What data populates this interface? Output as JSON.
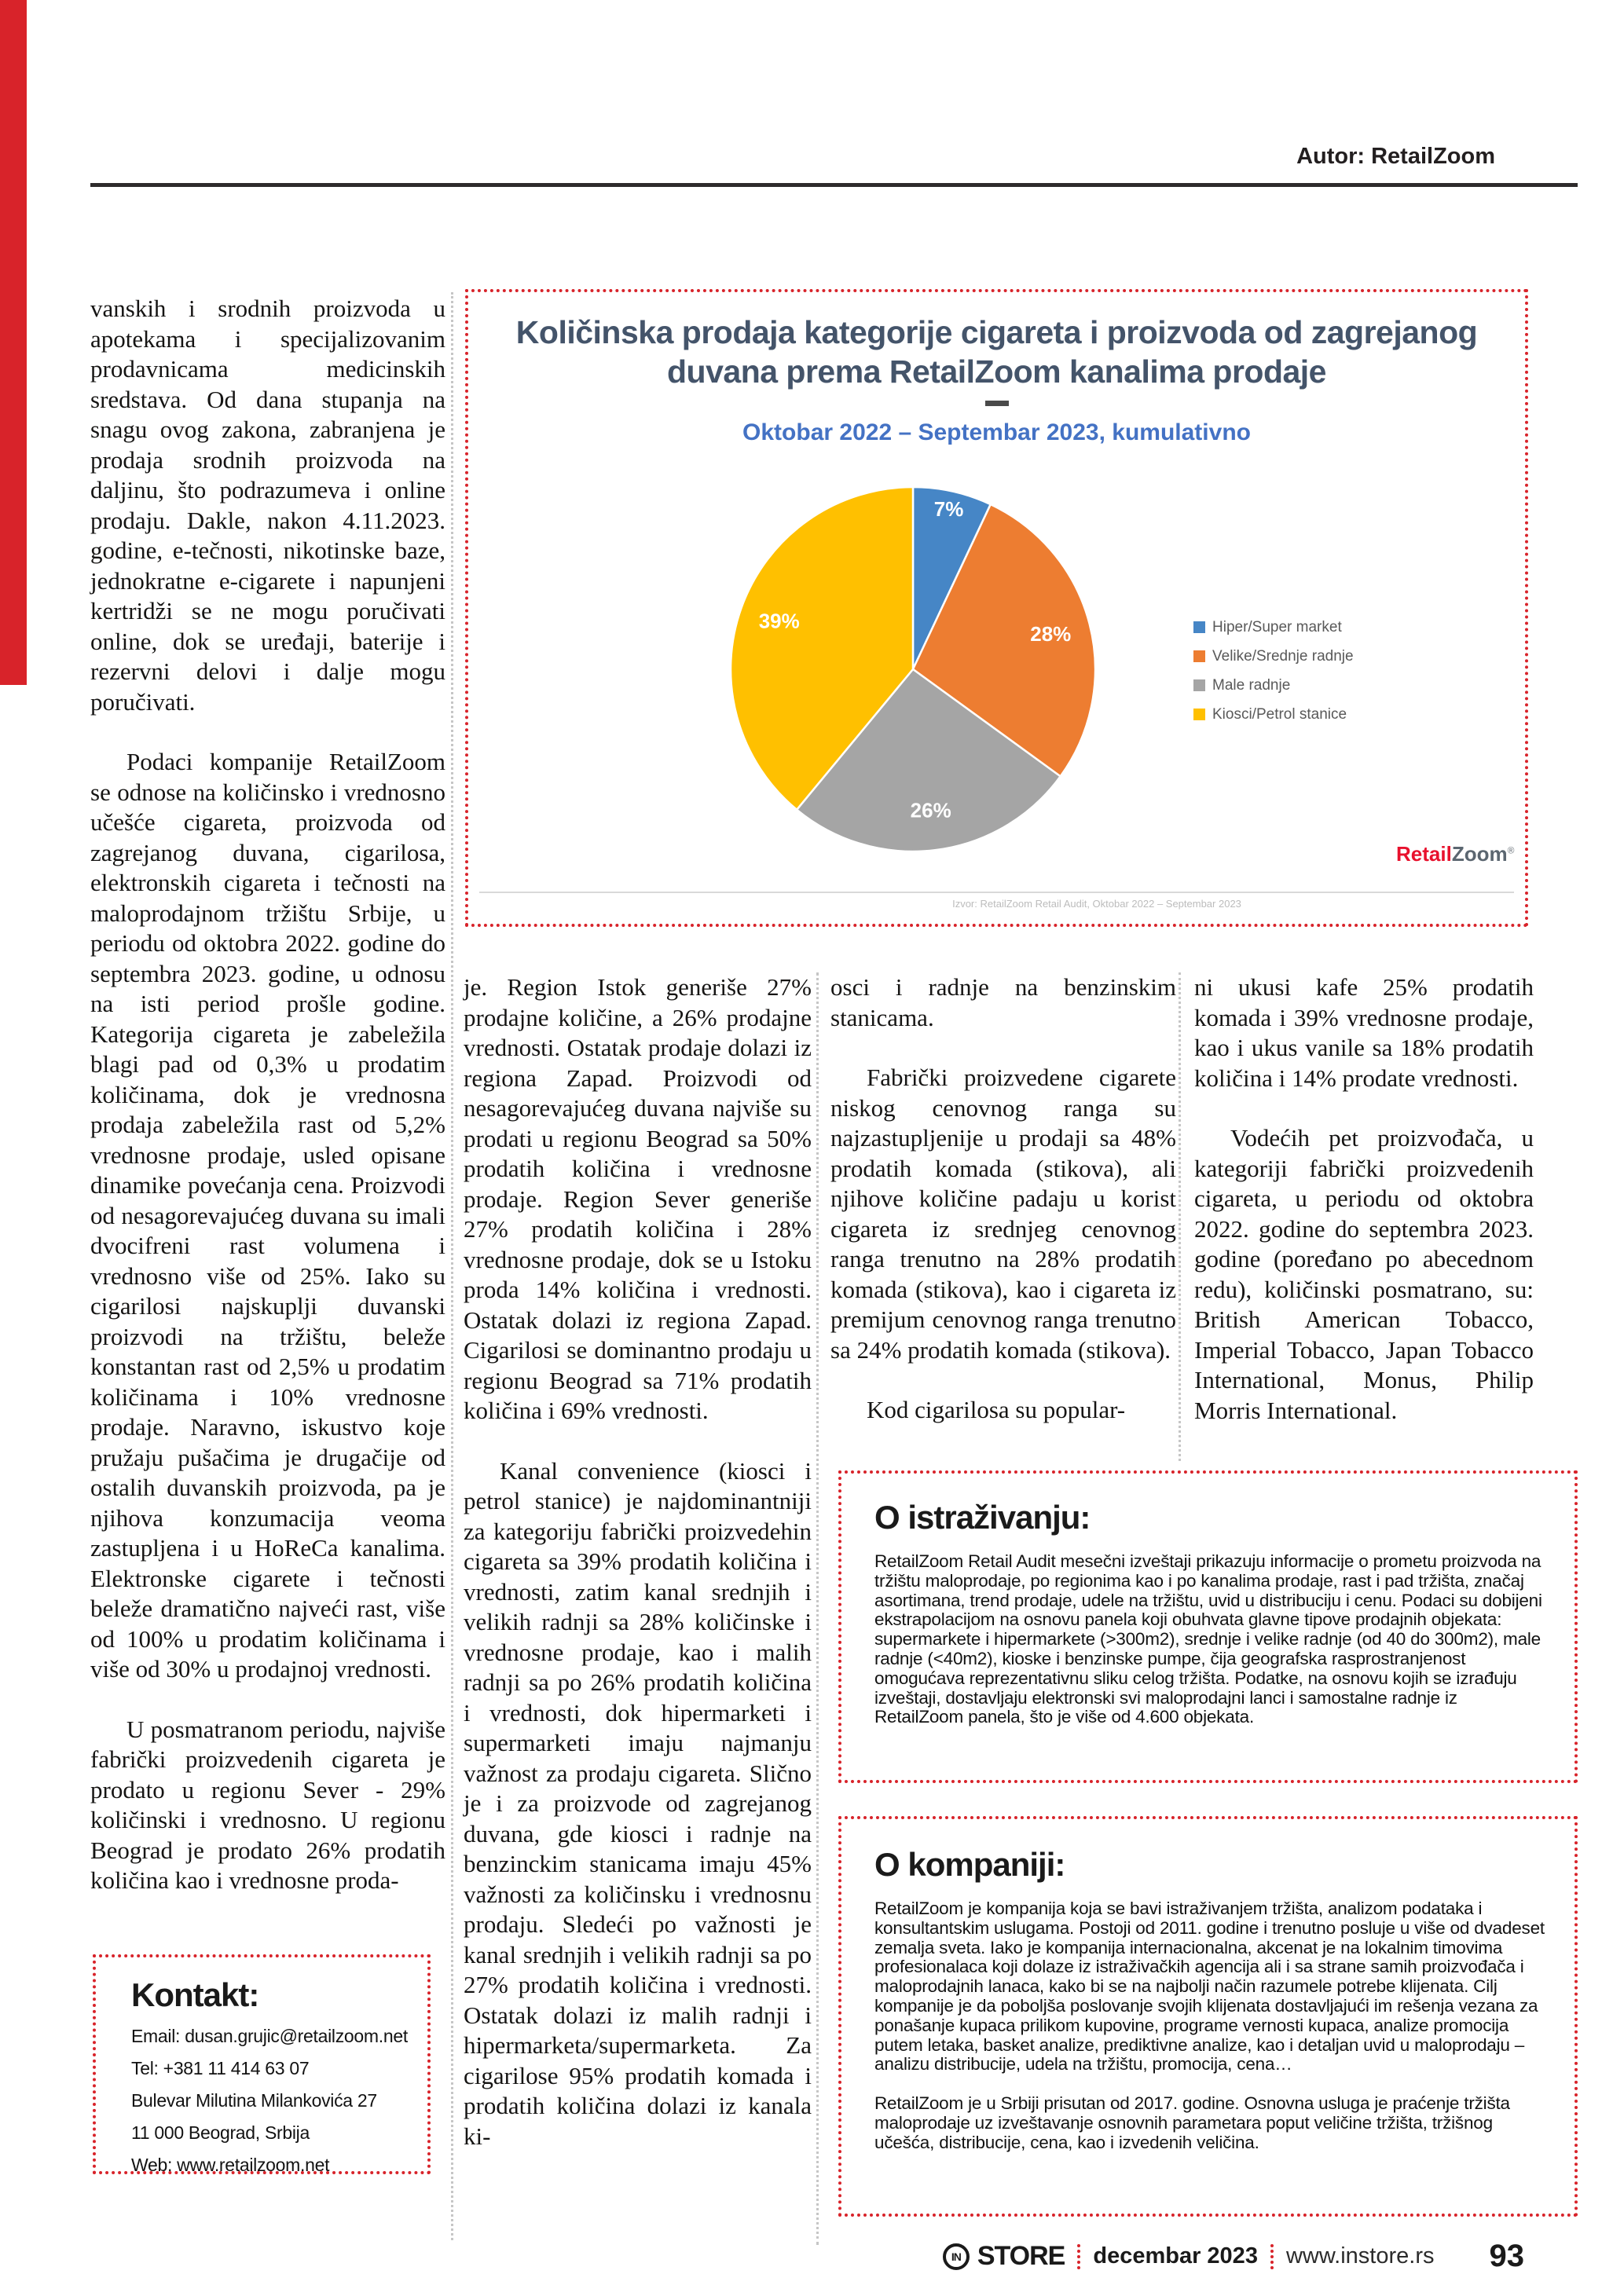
{
  "theme": {
    "accent_red": "#d8232a"
  },
  "header": {
    "author": "Autor: RetailZoom"
  },
  "chart_data": {
    "type": "pie",
    "title": "Količinska prodaja kategorije cigareta i proizvoda od zagrejanog duvana prema RetailZoom kanalima prodaje",
    "subtitle": "Oktobar 2022 – Septembar 2023, kumulativno",
    "labels": [
      "Hiper/Super market",
      "Velike/Srednje radnje",
      "Male radnje",
      "Kiosci/Petrol stanice"
    ],
    "values": [
      7,
      28,
      26,
      39
    ],
    "unit": "%",
    "colors": [
      "#4686c6",
      "#ed7d31",
      "#a5a5a5",
      "#ffc000"
    ],
    "legend_position": "right",
    "start_angle_deg": 0,
    "direction": "clockwise"
  },
  "chart": {
    "source_note": "Izvor: RetailZoom Retail Audit, Oktobar 2022 – Septembar 2023",
    "logo": {
      "retail": "Retail",
      "zoom": "Zoom",
      "mark": "®"
    }
  },
  "columns": {
    "col1": {
      "p1": "vanskih i srodnih proizvoda u apotekama i specijalizovanim prodavnicama medicinskih sredstava. Od dana stupanja na snagu ovog zakona, zabranjena je prodaja srodnih proizvoda na daljinu, što podrazumeva i online prodaju. Dakle, nakon 4.11.2023. godine, e-tečnosti, nikotinske baze, jednokratne e-cigarete i napunjeni kertridži se ne mogu poručivati online, dok se uređaji, baterije i rezervni delovi i dalje mogu poručivati.",
      "p2": "Podaci kompanije RetailZoom se odnose na količinsko i vrednosno učešće cigareta, proizvoda od zagrejanog duvana, cigarilosa, elektronskih cigareta i tečnosti na maloprodajnom tržištu Srbije, u periodu od oktobra 2022. godine do septembra 2023. godine, u odnosu na isti period prošle godine. Kategorija cigareta je zabeležila blagi pad od 0,3% u prodatim količinama, dok je vrednosna prodaja zabeležila rast od 5,2% vrednosne prodaje, usled opisane dinamike povećanja cena. Proizvodi od nesagorevajućeg duvana su imali dvocifreni rast volumena i vrednosno više od 25%. Iako su cigarilosi najskuplji duvanski proizvodi na tržištu, beleže konstantan rast od 2,5% u prodatim količinama i 10% vrednosne prodaje. Naravno, iskustvo koje pružaju pušačima je drugačije od ostalih duvanskih proizvoda, pa je njihova konzumacija veoma zastupljena i u HoReCa kanalima. Elektronske cigarete i tečnosti beleže dramatično najveći rast, više od 100% u prodatim količinama i više od 30% u prodajnoj vrednosti.",
      "p3": "U posmatranom periodu, najviše fabrički proizvedenih cigareta je prodato u regionu Sever - 29% količinski i vrednosno. U regionu Beograd je prodato 26% prodatih količina kao i vrednosne proda-"
    },
    "col2": {
      "p1": "je. Region Istok generiše 27% prodajne količine, a 26% prodajne vrednosti. Ostatak prodaje dolazi iz regiona Zapad. Proizvodi od nesagorevajućeg duvana najviše su prodati u regionu Beograd sa 50% prodatih količina i vrednosne prodaje. Region Sever generiše 27% prodatih količina i 28% vrednosne prodaje, dok se u Istoku proda 14% količina i vrednosti. Ostatak dolazi iz regiona Zapad. Cigarilosi se dominantno prodaju u regionu Beograd sa 71% prodatih količina i 69% vrednosti.",
      "p2": "Kanal convenience (kiosci i petrol stanice) je najdominantniji za kategoriju fabrički proizvedehin cigareta sa 39% prodatih količina i vrednosti, zatim kanal srednjih i velikih radnji sa 28% količinske i vrednosne prodaje, kao i malih radnji sa po 26% prodatih količina i vrednosti, dok hipermarketi i supermarketi imaju najmanju važnost za prodaju cigareta. Slično je i za proizvode od zagrejanog duvana, gde kiosci i radnje na benzinckim stanicama imaju 45% važnosti za količinsku i vrednosnu prodaju. Sledeći po važnosti je kanal srednjih i velikih radnji sa po 27% prodatih količina i vrednosti. Ostatak dolazi iz malih radnji i hipermarketa/supermarketa. Za cigarilose 95% prodatih komada i prodatih količina dolazi iz kanala ki-"
    },
    "col3": {
      "p1": "osci i radnje na benzinskim stanicama.",
      "p2": "Fabrički proizvedene cigarete niskog cenovnog ranga su najzastupljenije u prodaji sa 48% prodatih komada (stikova), ali njihove količine padaju u korist cigareta iz srednjeg cenovnog ranga trenutno na 28% prodatih komada (stikova), kao i cigareta iz premijum cenovnog ranga trenutno sa 24% prodatih komada (stikova).",
      "p3": "Kod cigarilosa su popular-"
    },
    "col4": {
      "p1": "ni ukusi kafe 25% prodatih komada i 39% vrednosne prodaje, kao i ukus vanile sa 18% prodatih količina i 14% prodate vrednosti.",
      "p2": "Vodećih pet proizvođača, u kategoriji fabrički proizvedenih cigareta, u periodu od oktobra 2022. godine do septembra 2023. godine (poređano po abecednom redu), količinski posmatrano, su: British American Tobacco, Imperial Tobacco, Japan Tobacco International, Monus, Philip Morris International."
    }
  },
  "kontakt": {
    "title": "Kontakt:",
    "lines": [
      "Email: dusan.grujic@retailzoom.net",
      "Tel:   +381 11 414 63 07",
      "Bulevar Milutina Milankovića 27",
      "11 000 Beograd, Srbija",
      "Web: www.retailzoom.net"
    ]
  },
  "research": {
    "title": "O istraživanju:",
    "body": "RetailZoom Retail Audit mesečni izveštaji prikazuju informacije o prometu proizvoda na tržištu maloprodaje, po regionima kao i po kanalima prodaje, rast i pad tržišta, značaj asortimana, trend prodaje, udele na tržištu, uvid u distribuciju i cenu. Podaci su dobijeni ekstrapolacijom na osnovu panela koji obuhvata glavne tipove prodajnih objekata: supermarkete i hipermarkete (>300m2), srednje i velike radnje (od 40 do 300m2), male radnje (<40m2), kioske i benzinske pumpe, čija geografska rasprostranjenost omogućava reprezentativnu sliku celog tržišta. Podatke, na osnovu kojih se izrađuju izveštaji, dostavljaju elektronski svi maloprodajni lanci i samostalne radnje iz RetailZoom panela, što je više od 4.600 objekata."
  },
  "company": {
    "title": "O kompaniji:",
    "body1": "RetailZoom je kompanija koja se bavi istraživanjem tržišta, analizom podataka i konsultantskim uslugama. Postoji od 2011. godine i trenutno posluje u više od dvadeset zemalja sveta. Iako je kompanija internacionalna, akcenat je na lokalnim timovima profesionalaca koji dolaze iz istraživačkih agencija ali i sa strane samih proizvođača i maloprodajnih lanaca, kako bi se na najbolji način razumele potrebe klijenata. Cilj kompanije je da poboljša poslovanje svojih klijenata dostavljajući im rešenja vezana za ponašanje kupaca prilikom kupovine, programe vernosti kupaca, analize promocija putem letaka, basket analize, prediktivne analize, kao i detaljan uvid u maloprodaju – analizu distribucije, udela na tržištu, promocija, cena…",
    "body2": "RetailZoom je u Srbiji prisutan od 2017. godine. Osnovna usluga je praćenje tržišta maloprodaje uz izveštavanje osnovnih parametara poput veličine tržišta, tržišnog učešća, distribucije, cena, kao i izvedenih veličina."
  },
  "footer": {
    "brand_in": "IN",
    "brand": "STORE",
    "date": "decembar 2023",
    "site": "www.instore.rs",
    "page": "93"
  }
}
